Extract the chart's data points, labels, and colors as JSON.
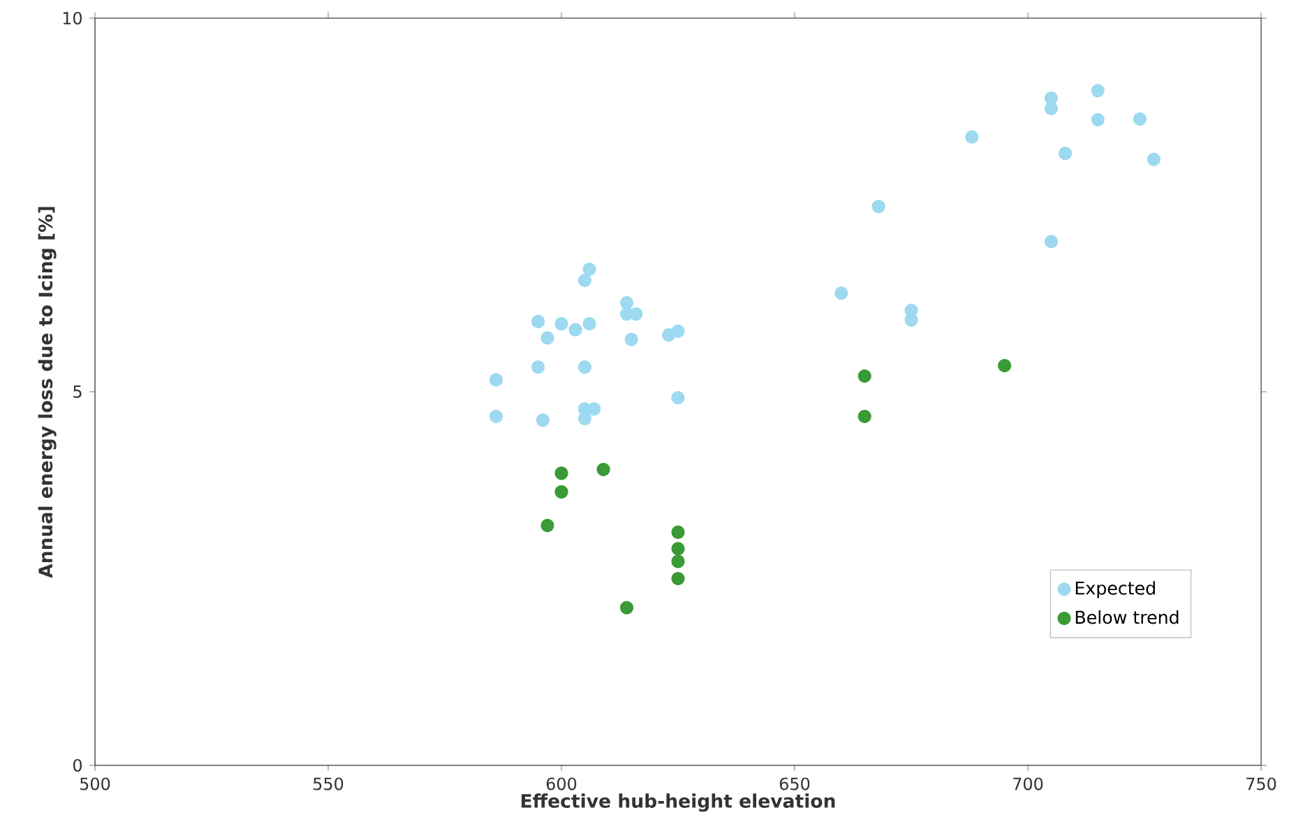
{
  "chart_data": {
    "type": "scatter",
    "xlabel": "Effective hub-height elevation",
    "ylabel": "Annual energy loss due to Icing [%]",
    "xlim": [
      500,
      750
    ],
    "ylim": [
      0,
      10
    ],
    "xticks": [
      500,
      550,
      600,
      650,
      700,
      750
    ],
    "yticks": [
      0,
      5,
      10
    ],
    "grid": false,
    "legend": "bottom right",
    "marker": "circle",
    "series": [
      {
        "name": "Expected",
        "color": "#9dd9f0",
        "x": [
          586,
          586,
          595,
          595,
          596,
          597,
          600,
          603,
          605,
          605,
          605,
          605,
          606,
          606,
          607,
          614,
          614,
          616,
          615,
          623,
          625,
          625,
          660,
          668,
          675,
          675,
          688,
          705,
          705,
          705,
          708,
          715,
          715,
          724,
          727
        ],
        "values": [
          5.16,
          4.67,
          5.94,
          5.33,
          4.62,
          5.72,
          5.91,
          5.83,
          6.49,
          5.33,
          4.77,
          4.64,
          6.64,
          5.91,
          4.77,
          6.19,
          6.04,
          6.04,
          5.7,
          5.76,
          5.81,
          4.92,
          6.32,
          7.48,
          6.09,
          5.96,
          8.41,
          8.79,
          8.93,
          7.01,
          8.19,
          9.03,
          8.64,
          8.65,
          8.11
        ]
      },
      {
        "name": "Below trend",
        "color": "#3a9a35",
        "x": [
          597,
          600,
          600,
          609,
          614,
          625,
          625,
          625,
          625,
          665,
          665,
          695
        ],
        "values": [
          3.21,
          3.91,
          3.66,
          3.96,
          2.11,
          3.12,
          2.9,
          2.73,
          2.5,
          5.21,
          4.67,
          5.35
        ]
      }
    ]
  }
}
